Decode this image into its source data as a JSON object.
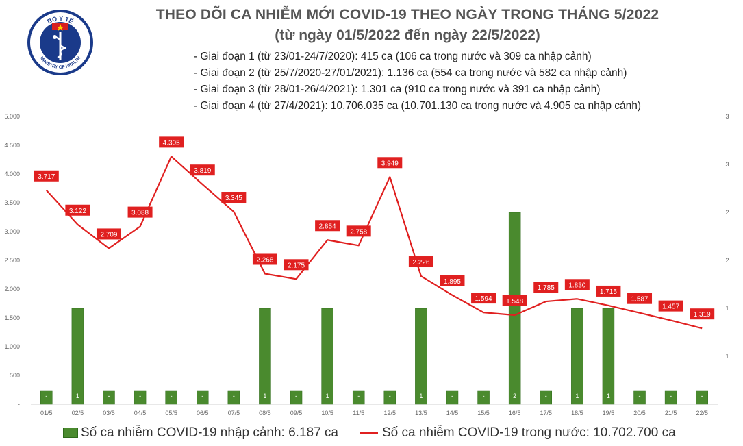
{
  "header": {
    "title": "THEO DÕI CA NHIỄM MỚI COVID-19 THEO NGÀY TRONG THÁNG 5/2022",
    "subtitle": "(từ ngày 01/5/2022 đến ngày 22/5/2022)",
    "notes": [
      "- Giai đoạn 1 (từ 23/01-24/7/2020): 415 ca (106 ca trong nước và 309 ca nhập cảnh)",
      "- Giai đoạn 2 (từ 25/7/2020-27/01/2021): 1.136 ca (554 ca trong nước và 582 ca nhập cảnh)",
      "- Giai đoạn 3 (từ 28/01-26/4/2021): 1.301 ca (910 ca trong nước và 391 ca nhập cảnh)",
      "- Giai đoạn 4 (từ 27/4/2021): 10.706.035 ca (10.701.130 ca trong nước và 4.905 ca nhập cảnh)"
    ]
  },
  "logo": {
    "top_text": "BỘ Y TẾ",
    "bottom_text": "MINISTRY OF HEALTH",
    "colors": {
      "ring": "#1a3a8a",
      "star": "#ffd400",
      "flag": "#d82020"
    },
    "icon": "caduceus-icon"
  },
  "chart_data": {
    "type": "bar-line",
    "categories": [
      "01/5",
      "02/5",
      "03/5",
      "04/5",
      "05/5",
      "06/5",
      "07/5",
      "08/5",
      "09/5",
      "10/5",
      "11/5",
      "12/5",
      "13/5",
      "14/5",
      "15/5",
      "16/5",
      "17/5",
      "18/5",
      "19/5",
      "20/5",
      "21/5",
      "22/5"
    ],
    "series": [
      {
        "name": "Số ca nhiễm COVID-19 nhập cảnh: 6.187 ca",
        "type": "bar",
        "axis": "right",
        "values": [
          0,
          1,
          0,
          0,
          0,
          0,
          0,
          1,
          0,
          1,
          0,
          0,
          1,
          0,
          0,
          2,
          0,
          1,
          1,
          0,
          0,
          0
        ],
        "labels": [
          "-",
          "1",
          "-",
          "-",
          "-",
          "-",
          "-",
          "1",
          "-",
          "1",
          "-",
          "-",
          "1",
          "-",
          "-",
          "2",
          "-",
          "1",
          "1",
          "-",
          "-",
          "-"
        ],
        "color": "#4a8a2e"
      },
      {
        "name": "Số ca nhiễm COVID-19 trong nước: 10.702.700 ca",
        "type": "line",
        "axis": "left",
        "values": [
          3717,
          3122,
          2709,
          3088,
          4305,
          3819,
          3345,
          2268,
          2175,
          2854,
          2758,
          3949,
          2226,
          1895,
          1594,
          1548,
          1785,
          1830,
          1715,
          1587,
          1457,
          1319
        ],
        "labels": [
          "3.717",
          "3.122",
          "2.709",
          "3.088",
          "4.305",
          "3.819",
          "3.345",
          "2.268",
          "2.175",
          "2.854",
          "2.758",
          "3.949",
          "2.226",
          "1.895",
          "1.594",
          "1.548",
          "1.785",
          "1.830",
          "1.715",
          "1.587",
          "1.457",
          "1.319"
        ],
        "color": "#e02020"
      }
    ],
    "y_left": {
      "range": [
        0,
        5000
      ],
      "ticks": [
        "-",
        "500",
        "1.000",
        "1.500",
        "2.000",
        "2.500",
        "3.000",
        "3.500",
        "4.000",
        "4.500",
        "5.000"
      ]
    },
    "y_right": {
      "range": [
        0,
        3
      ],
      "ticks": [
        "1",
        "1",
        "2",
        "2",
        "3",
        "3"
      ]
    },
    "grid": false,
    "legend_position": "bottom"
  }
}
